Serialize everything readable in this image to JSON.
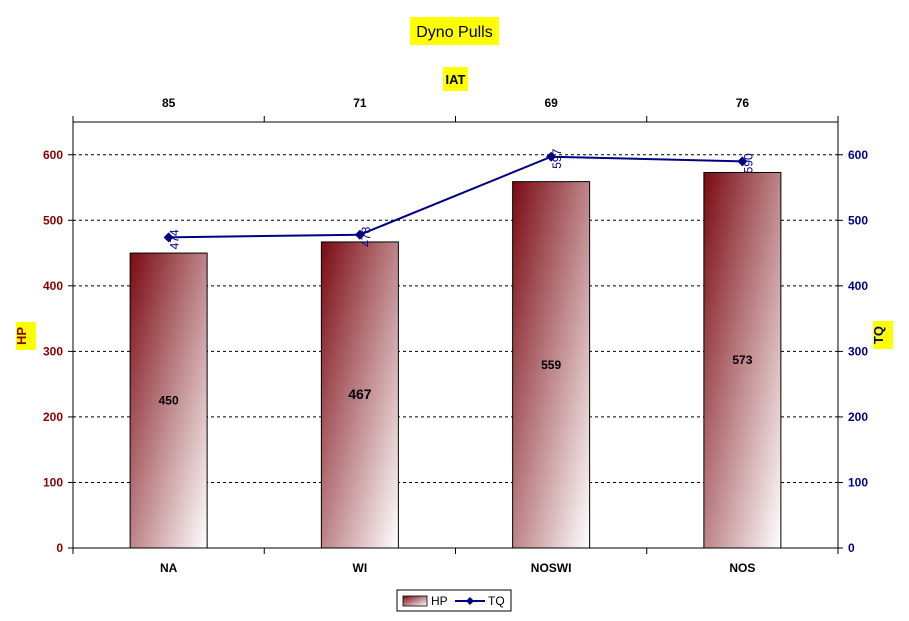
{
  "chart_data": {
    "type": "bar",
    "title": "Dyno Pulls",
    "secondary_xlabel": "IAT",
    "categories": [
      "NA",
      "WI",
      "NOSWI",
      "NOS"
    ],
    "secondary_x_ticks": [
      "85",
      "71",
      "69",
      "76"
    ],
    "ylabel": "HP",
    "y2label": "TQ",
    "ylim": [
      0,
      650
    ],
    "y2lim": [
      0,
      650
    ],
    "yticks": [
      0,
      100,
      200,
      300,
      400,
      500,
      600
    ],
    "grid": true,
    "legend_position": "bottom",
    "series": [
      {
        "name": "HP",
        "type": "bar",
        "axis": "left",
        "values": [
          450,
          467,
          559,
          573
        ],
        "labels": [
          "450",
          "467",
          "559",
          "573"
        ]
      },
      {
        "name": "TQ",
        "type": "line",
        "axis": "right",
        "values": [
          474,
          478,
          597,
          590
        ],
        "labels": [
          "474",
          "478",
          "597",
          "590"
        ]
      }
    ],
    "colors": {
      "hp_bar_dark": "#7a0a12",
      "hp_bar_light": "#ffffff",
      "left_axis": "#8b0000",
      "tq_line": "#000080",
      "title_bg": "#ffff00"
    }
  }
}
